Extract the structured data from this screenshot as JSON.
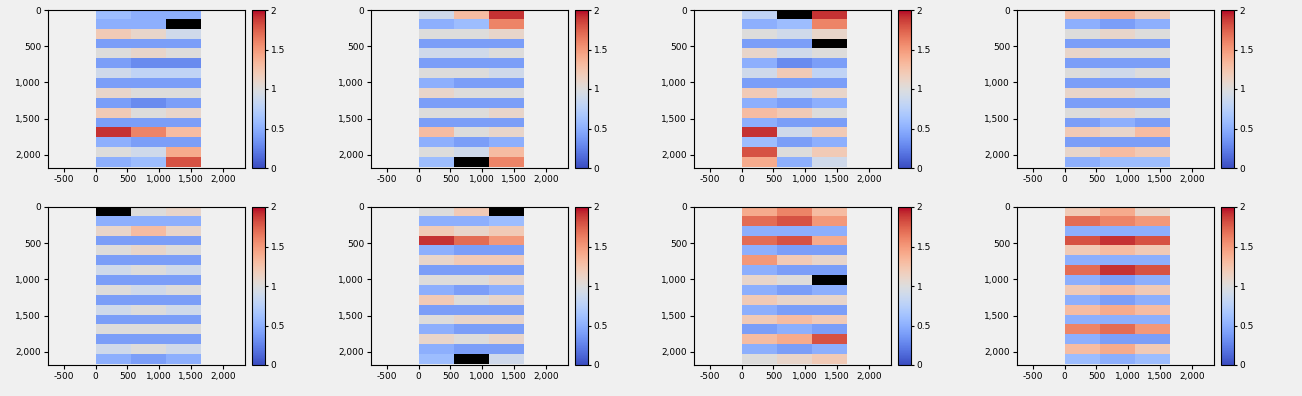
{
  "chart_data": [
    {
      "type": "heatmap",
      "x_extent": [
        0,
        1650
      ],
      "y_extent": [
        0,
        2170
      ],
      "xlim": [
        -750,
        2350
      ],
      "ylim": [
        2180,
        0
      ],
      "xticks": [
        -500,
        0,
        500,
        {
          "value": 1000,
          "label": "1,000"
        },
        {
          "value": 1500,
          "label": "1,500"
        },
        {
          "value": 2000,
          "label": "2,000"
        }
      ],
      "yticks": [
        0,
        500,
        {
          "value": 1000,
          "label": "1,000"
        },
        {
          "value": 1500,
          "label": "1,500"
        },
        {
          "value": 2000,
          "label": "2,000"
        }
      ],
      "colorbar_range": [
        0,
        2
      ],
      "colorbar_ticks": [
        0,
        0.5,
        1,
        1.5,
        2
      ],
      "cells": [
        [
          0.6,
          0.5,
          0.5
        ],
        [
          0.5,
          0.5,
          null
        ],
        [
          1.2,
          1.1,
          0.9
        ],
        [
          0.4,
          0.4,
          0.4
        ],
        [
          1.0,
          1.1,
          1.0
        ],
        [
          0.4,
          0.3,
          0.3
        ],
        [
          0.9,
          0.8,
          0.8
        ],
        [
          0.4,
          0.4,
          0.4
        ],
        [
          1.1,
          1.0,
          1.0
        ],
        [
          0.4,
          0.3,
          0.4
        ],
        [
          1.2,
          1.0,
          1.1
        ],
        [
          0.4,
          0.4,
          0.4
        ],
        [
          1.9,
          1.6,
          1.3
        ],
        [
          0.5,
          0.4,
          0.4
        ],
        [
          1.0,
          0.9,
          1.4
        ],
        [
          0.5,
          0.6,
          1.8
        ]
      ]
    },
    {
      "type": "heatmap",
      "x_extent": [
        0,
        1650
      ],
      "y_extent": [
        0,
        2170
      ],
      "xlim": [
        -750,
        2350
      ],
      "ylim": [
        2180,
        0
      ],
      "xticks": [
        -500,
        0,
        500,
        {
          "value": 1000,
          "label": "1,000"
        },
        {
          "value": 1500,
          "label": "1,500"
        },
        {
          "value": 2000,
          "label": "2,000"
        }
      ],
      "yticks": [
        0,
        500,
        {
          "value": 1000,
          "label": "1,000"
        },
        {
          "value": 1500,
          "label": "1,500"
        },
        {
          "value": 2000,
          "label": "2,000"
        }
      ],
      "colorbar_range": [
        0,
        2
      ],
      "colorbar_ticks": [
        0,
        0.5,
        1,
        1.5,
        2
      ],
      "cells": [
        [
          0.9,
          1.3,
          1.9
        ],
        [
          0.5,
          0.6,
          1.6
        ],
        [
          1.0,
          1.0,
          1.1
        ],
        [
          0.4,
          0.4,
          0.4
        ],
        [
          0.9,
          0.9,
          1.0
        ],
        [
          0.4,
          0.4,
          0.4
        ],
        [
          1.0,
          1.0,
          0.9
        ],
        [
          0.5,
          0.4,
          0.4
        ],
        [
          1.1,
          1.0,
          1.0
        ],
        [
          0.4,
          0.4,
          0.4
        ],
        [
          1.0,
          1.0,
          1.1
        ],
        [
          0.4,
          0.4,
          0.4
        ],
        [
          1.3,
          1.0,
          1.1
        ],
        [
          0.5,
          0.4,
          0.5
        ],
        [
          1.0,
          0.9,
          1.3
        ],
        [
          0.6,
          null,
          1.6
        ]
      ]
    },
    {
      "type": "heatmap",
      "x_extent": [
        0,
        1650
      ],
      "y_extent": [
        0,
        2170
      ],
      "xlim": [
        -750,
        2350
      ],
      "ylim": [
        2180,
        0
      ],
      "xticks": [
        -500,
        0,
        500,
        {
          "value": 1000,
          "label": "1,000"
        },
        {
          "value": 1500,
          "label": "1,500"
        },
        {
          "value": 2000,
          "label": "2,000"
        }
      ],
      "yticks": [
        0,
        500,
        {
          "value": 1000,
          "label": "1,000"
        },
        {
          "value": 1500,
          "label": "1,500"
        },
        {
          "value": 2000,
          "label": "2,000"
        }
      ],
      "colorbar_range": [
        0,
        2
      ],
      "colorbar_ticks": [
        0,
        0.5,
        1,
        1.5,
        2
      ],
      "cells": [
        [
          0.8,
          null,
          1.9
        ],
        [
          0.5,
          0.6,
          1.6
        ],
        [
          1.0,
          0.9,
          1.1
        ],
        [
          0.4,
          0.4,
          null
        ],
        [
          1.1,
          0.9,
          1.0
        ],
        [
          0.5,
          0.3,
          0.4
        ],
        [
          0.9,
          1.2,
          0.8
        ],
        [
          0.4,
          0.4,
          0.4
        ],
        [
          1.2,
          0.9,
          1.1
        ],
        [
          0.5,
          0.4,
          0.5
        ],
        [
          1.3,
          1.2,
          1.0
        ],
        [
          0.5,
          0.4,
          0.4
        ],
        [
          1.9,
          0.9,
          1.2
        ],
        [
          0.6,
          0.4,
          0.5
        ],
        [
          1.8,
          1.0,
          1.2
        ],
        [
          1.4,
          0.5,
          0.9
        ]
      ]
    },
    {
      "type": "heatmap",
      "x_extent": [
        0,
        1650
      ],
      "y_extent": [
        0,
        2170
      ],
      "xlim": [
        -750,
        2350
      ],
      "ylim": [
        2180,
        0
      ],
      "xticks": [
        -500,
        0,
        500,
        {
          "value": 1000,
          "label": "1,000"
        },
        {
          "value": 1500,
          "label": "1,500"
        },
        {
          "value": 2000,
          "label": "2,000"
        }
      ],
      "yticks": [
        0,
        500,
        {
          "value": 1000,
          "label": "1,000"
        },
        {
          "value": 1500,
          "label": "1,500"
        },
        {
          "value": 2000,
          "label": "2,000"
        }
      ],
      "colorbar_range": [
        0,
        2
      ],
      "colorbar_ticks": [
        0,
        0.5,
        1,
        1.5,
        2
      ],
      "cells": [
        [
          1.3,
          1.4,
          1.2
        ],
        [
          0.5,
          0.4,
          0.5
        ],
        [
          1.0,
          1.1,
          1.0
        ],
        [
          0.4,
          0.4,
          0.4
        ],
        [
          1.1,
          1.0,
          1.0
        ],
        [
          0.4,
          0.4,
          0.4
        ],
        [
          1.0,
          0.9,
          1.0
        ],
        [
          0.4,
          0.4,
          0.4
        ],
        [
          1.1,
          1.1,
          1.0
        ],
        [
          0.4,
          0.4,
          0.4
        ],
        [
          1.0,
          1.1,
          1.0
        ],
        [
          0.4,
          0.5,
          0.4
        ],
        [
          1.2,
          1.1,
          1.3
        ],
        [
          0.4,
          0.4,
          0.4
        ],
        [
          1.1,
          1.3,
          1.2
        ],
        [
          0.5,
          0.6,
          0.6
        ]
      ]
    },
    {
      "type": "heatmap",
      "x_extent": [
        0,
        1650
      ],
      "y_extent": [
        0,
        2170
      ],
      "xlim": [
        -750,
        2350
      ],
      "ylim": [
        2180,
        0
      ],
      "xticks": [
        -500,
        0,
        500,
        {
          "value": 1000,
          "label": "1,000"
        },
        {
          "value": 1500,
          "label": "1,500"
        },
        {
          "value": 2000,
          "label": "2,000"
        }
      ],
      "yticks": [
        0,
        500,
        {
          "value": 1000,
          "label": "1,000"
        },
        {
          "value": 1500,
          "label": "1,500"
        },
        {
          "value": 2000,
          "label": "2,000"
        }
      ],
      "colorbar_range": [
        0,
        2
      ],
      "colorbar_ticks": [
        0,
        0.5,
        1,
        1.5,
        2
      ],
      "cells": [
        [
          null,
          1.0,
          1.1
        ],
        [
          0.5,
          0.5,
          0.5
        ],
        [
          1.1,
          1.3,
          1.1
        ],
        [
          0.4,
          0.4,
          0.4
        ],
        [
          1.0,
          1.1,
          1.0
        ],
        [
          0.4,
          0.4,
          0.4
        ],
        [
          0.9,
          1.0,
          0.9
        ],
        [
          0.4,
          0.4,
          0.4
        ],
        [
          1.0,
          0.9,
          1.0
        ],
        [
          0.4,
          0.4,
          0.4
        ],
        [
          0.9,
          1.0,
          0.9
        ],
        [
          0.4,
          0.4,
          0.4
        ],
        [
          1.0,
          1.0,
          1.0
        ],
        [
          0.4,
          0.4,
          0.4
        ],
        [
          0.9,
          1.0,
          0.9
        ],
        [
          0.5,
          0.4,
          0.5
        ]
      ]
    },
    {
      "type": "heatmap",
      "x_extent": [
        0,
        1650
      ],
      "y_extent": [
        0,
        2170
      ],
      "xlim": [
        -750,
        2350
      ],
      "ylim": [
        2180,
        0
      ],
      "xticks": [
        -500,
        0,
        500,
        {
          "value": 1000,
          "label": "1,000"
        },
        {
          "value": 1500,
          "label": "1,500"
        },
        {
          "value": 2000,
          "label": "2,000"
        }
      ],
      "yticks": [
        0,
        500,
        {
          "value": 1000,
          "label": "1,000"
        },
        {
          "value": 1500,
          "label": "1,500"
        },
        {
          "value": 2000,
          "label": "2,000"
        }
      ],
      "colorbar_range": [
        0,
        2
      ],
      "colorbar_ticks": [
        0,
        0.5,
        1,
        1.5,
        2
      ],
      "cells": [
        [
          1.0,
          1.2,
          null
        ],
        [
          0.5,
          0.5,
          0.6
        ],
        [
          1.2,
          1.1,
          1.2
        ],
        [
          1.9,
          1.7,
          1.5
        ],
        [
          0.5,
          0.4,
          0.4
        ],
        [
          1.1,
          1.2,
          1.2
        ],
        [
          0.4,
          0.4,
          0.4
        ],
        [
          1.0,
          1.0,
          1.1
        ],
        [
          0.5,
          0.4,
          0.5
        ],
        [
          1.2,
          1.0,
          1.1
        ],
        [
          0.4,
          0.4,
          0.4
        ],
        [
          1.0,
          1.1,
          1.1
        ],
        [
          0.5,
          0.4,
          0.4
        ],
        [
          1.1,
          1.0,
          1.1
        ],
        [
          0.5,
          0.4,
          0.4
        ],
        [
          0.6,
          null,
          0.9
        ]
      ]
    },
    {
      "type": "heatmap",
      "x_extent": [
        0,
        1650
      ],
      "y_extent": [
        0,
        2170
      ],
      "xlim": [
        -750,
        2350
      ],
      "ylim": [
        2180,
        0
      ],
      "xticks": [
        -500,
        0,
        500,
        {
          "value": 1000,
          "label": "1,000"
        },
        {
          "value": 1500,
          "label": "1,500"
        },
        {
          "value": 2000,
          "label": "2,000"
        }
      ],
      "yticks": [
        0,
        500,
        {
          "value": 1000,
          "label": "1,000"
        },
        {
          "value": 1500,
          "label": "1,500"
        },
        {
          "value": 2000,
          "label": "2,000"
        }
      ],
      "colorbar_range": [
        0,
        2
      ],
      "colorbar_ticks": [
        0,
        0.5,
        1,
        1.5,
        2
      ],
      "cells": [
        [
          1.4,
          1.6,
          1.3
        ],
        [
          1.7,
          1.8,
          1.5
        ],
        [
          0.5,
          0.5,
          0.5
        ],
        [
          1.7,
          1.8,
          1.4
        ],
        [
          0.5,
          0.4,
          0.4
        ],
        [
          1.5,
          1.2,
          1.1
        ],
        [
          0.5,
          0.4,
          0.4
        ],
        [
          1.1,
          1.0,
          null
        ],
        [
          0.5,
          0.4,
          0.5
        ],
        [
          1.2,
          1.1,
          1.1
        ],
        [
          0.5,
          0.4,
          0.4
        ],
        [
          1.2,
          1.3,
          1.2
        ],
        [
          0.4,
          0.5,
          0.4
        ],
        [
          1.3,
          1.4,
          1.8
        ],
        [
          0.5,
          0.4,
          0.5
        ],
        [
          1.0,
          1.1,
          1.2
        ]
      ]
    },
    {
      "type": "heatmap",
      "x_extent": [
        0,
        1650
      ],
      "y_extent": [
        0,
        2170
      ],
      "xlim": [
        -750,
        2350
      ],
      "ylim": [
        2180,
        0
      ],
      "xticks": [
        -500,
        0,
        500,
        {
          "value": 1000,
          "label": "1,000"
        },
        {
          "value": 1500,
          "label": "1,500"
        },
        {
          "value": 2000,
          "label": "2,000"
        }
      ],
      "yticks": [
        0,
        500,
        {
          "value": 1000,
          "label": "1,000"
        },
        {
          "value": 1500,
          "label": "1,500"
        },
        {
          "value": 2000,
          "label": "2,000"
        }
      ],
      "colorbar_range": [
        0,
        2
      ],
      "colorbar_ticks": [
        0,
        0.5,
        1,
        1.5,
        2
      ],
      "cells": [
        [
          1.2,
          1.4,
          1.1
        ],
        [
          1.7,
          1.6,
          1.5
        ],
        [
          0.5,
          0.5,
          0.5
        ],
        [
          1.8,
          1.9,
          1.8
        ],
        [
          1.2,
          1.3,
          1.2
        ],
        [
          0.5,
          0.5,
          0.5
        ],
        [
          1.7,
          1.9,
          1.8
        ],
        [
          0.5,
          0.4,
          0.5
        ],
        [
          1.2,
          1.3,
          1.2
        ],
        [
          0.5,
          0.4,
          0.5
        ],
        [
          1.3,
          1.4,
          1.3
        ],
        [
          0.5,
          0.5,
          0.5
        ],
        [
          1.6,
          1.7,
          1.5
        ],
        [
          0.5,
          0.4,
          0.4
        ],
        [
          1.3,
          1.4,
          1.2
        ],
        [
          0.6,
          0.5,
          0.6
        ]
      ]
    }
  ]
}
